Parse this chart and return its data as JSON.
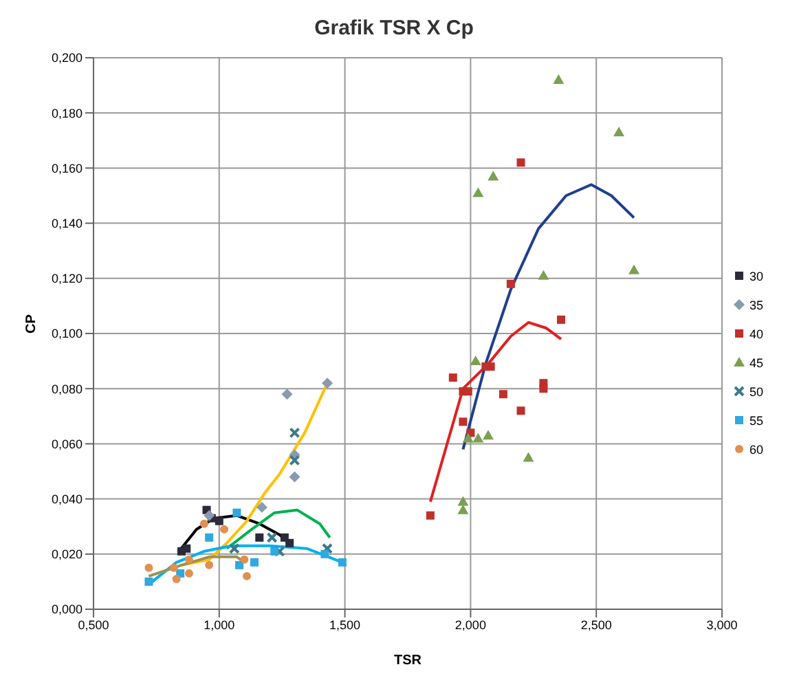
{
  "chart_data": {
    "type": "scatter",
    "title": "Grafik TSR X Cp",
    "xlabel": "TSR",
    "ylabel": "CP",
    "xlim": [
      0.5,
      3.0
    ],
    "xticks": [
      {
        "value": 0.5,
        "label": "0,500"
      },
      {
        "value": 1.0,
        "label": "1,000"
      },
      {
        "value": 1.5,
        "label": "1,500"
      },
      {
        "value": 2.0,
        "label": "2,000"
      },
      {
        "value": 2.5,
        "label": "2,500"
      },
      {
        "value": 3.0,
        "label": "3,000"
      }
    ],
    "ylim": [
      0,
      0.2
    ],
    "yticks": [
      {
        "value": 0,
        "label": "0,000"
      },
      {
        "value": 0.02,
        "label": "0,020"
      },
      {
        "value": 0.04,
        "label": "0,040"
      },
      {
        "value": 0.06,
        "label": "0,060"
      },
      {
        "value": 0.08,
        "label": "0,080"
      },
      {
        "value": 0.1,
        "label": "0,100"
      },
      {
        "value": 0.12,
        "label": "0,120"
      },
      {
        "value": 0.14,
        "label": "0,140"
      },
      {
        "value": 0.16,
        "label": "0,160"
      },
      {
        "value": 0.18,
        "label": "0,180"
      },
      {
        "value": 0.2,
        "label": "0,200"
      }
    ],
    "grid": true,
    "legend": "right",
    "series": [
      {
        "name": "30",
        "marker": "square",
        "color": "#2a2a3a",
        "x": [
          0.85,
          0.87,
          0.95,
          0.97,
          1.0,
          1.16,
          1.26,
          1.28
        ],
        "values": [
          0.021,
          0.022,
          0.036,
          0.033,
          0.032,
          0.026,
          0.026,
          0.024
        ]
      },
      {
        "name": "35",
        "marker": "diamond",
        "color": "#8a9ab0",
        "x": [
          0.96,
          1.17,
          1.27,
          1.3,
          1.3,
          1.43
        ],
        "values": [
          0.034,
          0.037,
          0.078,
          0.048,
          0.056,
          0.082
        ]
      },
      {
        "name": "40",
        "marker": "square",
        "color": "#c0302a",
        "x": [
          1.84,
          1.93,
          1.97,
          1.99,
          1.97,
          2.0,
          2.06,
          2.08,
          2.13,
          2.2,
          2.16,
          2.2,
          2.29,
          2.29,
          2.36
        ],
        "values": [
          0.034,
          0.084,
          0.079,
          0.079,
          0.068,
          0.064,
          0.088,
          0.088,
          0.078,
          0.072,
          0.118,
          0.162,
          0.082,
          0.08,
          0.105
        ]
      },
      {
        "name": "45",
        "marker": "triangle",
        "color": "#7aa050",
        "x": [
          1.97,
          1.97,
          1.99,
          2.02,
          2.03,
          2.03,
          2.07,
          2.09,
          2.23,
          2.29,
          2.35,
          2.59,
          2.65
        ],
        "values": [
          0.036,
          0.039,
          0.062,
          0.09,
          0.062,
          0.151,
          0.063,
          0.157,
          0.055,
          0.121,
          0.192,
          0.173,
          0.123
        ]
      },
      {
        "name": "50",
        "marker": "cross",
        "color": "#3a7a8a",
        "x": [
          1.06,
          1.21,
          1.24,
          1.3,
          1.3,
          1.43
        ],
        "values": [
          0.022,
          0.026,
          0.021,
          0.064,
          0.054,
          0.022
        ]
      },
      {
        "name": "55",
        "marker": "square",
        "color": "#30a8e0",
        "x": [
          0.72,
          0.845,
          0.96,
          1.07,
          1.08,
          1.14,
          1.22,
          1.42,
          1.49
        ],
        "values": [
          0.01,
          0.013,
          0.026,
          0.035,
          0.016,
          0.017,
          0.021,
          0.02,
          0.017
        ]
      },
      {
        "name": "60",
        "marker": "circle",
        "color": "#e09050",
        "x": [
          0.72,
          0.82,
          0.83,
          0.88,
          0.88,
          0.94,
          0.96,
          1.02,
          1.1,
          1.11
        ],
        "values": [
          0.015,
          0.015,
          0.011,
          0.013,
          0.018,
          0.031,
          0.016,
          0.029,
          0.018,
          0.012
        ]
      },
      {
        "type": "line",
        "marker": "none",
        "color": "#000000",
        "x": [
          0.84,
          0.91,
          0.98,
          1.07,
          1.16,
          1.24,
          1.29
        ],
        "values": [
          0.021,
          0.029,
          0.033,
          0.034,
          0.031,
          0.027,
          0.023
        ]
      },
      {
        "type": "line",
        "marker": "none",
        "color": "#ffc000",
        "x": [
          0.85,
          0.96,
          1.03,
          1.11,
          1.18,
          1.24,
          1.34,
          1.43
        ],
        "values": [
          0.016,
          0.018,
          0.024,
          0.032,
          0.042,
          0.049,
          0.064,
          0.082
        ]
      },
      {
        "type": "line",
        "marker": "none",
        "color": "#e02020",
        "x": [
          1.84,
          1.97,
          2.07,
          2.16,
          2.23,
          2.3,
          2.36
        ],
        "values": [
          0.039,
          0.08,
          0.089,
          0.099,
          0.104,
          0.102,
          0.098
        ]
      },
      {
        "type": "line",
        "marker": "none",
        "color": "#1f3f8f",
        "x": [
          1.97,
          2.06,
          2.16,
          2.27,
          2.38,
          2.48,
          2.56,
          2.65
        ],
        "values": [
          0.058,
          0.089,
          0.116,
          0.138,
          0.15,
          0.154,
          0.15,
          0.142
        ]
      },
      {
        "type": "line",
        "marker": "none",
        "color": "#00b050",
        "x": [
          1.03,
          1.13,
          1.22,
          1.31,
          1.4,
          1.44
        ],
        "values": [
          0.022,
          0.029,
          0.035,
          0.036,
          0.031,
          0.026
        ]
      },
      {
        "type": "line",
        "marker": "none",
        "color": "#00b0f0",
        "x": [
          0.72,
          0.83,
          0.94,
          1.05,
          1.2,
          1.35,
          1.49
        ],
        "values": [
          0.009,
          0.017,
          0.021,
          0.023,
          0.023,
          0.022,
          0.017
        ]
      },
      {
        "type": "line",
        "marker": "none",
        "color": "#a09050",
        "x": [
          0.72,
          0.85,
          0.96,
          1.07,
          1.1
        ],
        "values": [
          0.012,
          0.016,
          0.019,
          0.019,
          0.017
        ]
      }
    ]
  }
}
